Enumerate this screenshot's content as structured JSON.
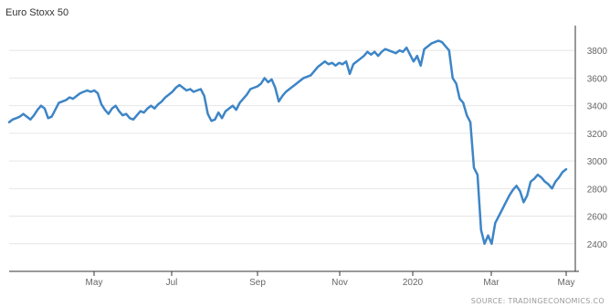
{
  "chart_data": {
    "type": "line",
    "title": "Euro Stoxx 50",
    "source": "SOURCE: TRADINGECONOMICS.CO",
    "xlabel": "",
    "ylabel": "",
    "ylim": [
      2200,
      3980
    ],
    "y_ticks": [
      2400,
      2600,
      2800,
      3000,
      3200,
      3400,
      3600,
      3800
    ],
    "x_ticks": [
      "May",
      "Jul",
      "Sep",
      "Nov",
      "2020",
      "Mar",
      "May"
    ],
    "grid": true,
    "colors": {
      "line": "#3d85c6",
      "grid": "#e6e6e6",
      "axis": "#333333"
    },
    "series": [
      {
        "values": [
          3280,
          3300,
          3310,
          3320,
          3340,
          3320,
          3300,
          3330,
          3370,
          3400,
          3380,
          3310,
          3320,
          3370,
          3420,
          3430,
          3440,
          3460,
          3450,
          3470,
          3490,
          3500,
          3510,
          3500,
          3510,
          3490,
          3410,
          3370,
          3340,
          3380,
          3400,
          3360,
          3330,
          3340,
          3310,
          3300,
          3330,
          3360,
          3350,
          3380,
          3400,
          3380,
          3410,
          3430,
          3460,
          3480,
          3500,
          3530,
          3550,
          3530,
          3510,
          3520,
          3500,
          3510,
          3520,
          3470,
          3340,
          3290,
          3300,
          3350,
          3310,
          3360,
          3380,
          3400,
          3370,
          3420,
          3450,
          3480,
          3520,
          3530,
          3540,
          3560,
          3600,
          3570,
          3590,
          3530,
          3430,
          3470,
          3500,
          3520,
          3540,
          3560,
          3580,
          3600,
          3610,
          3620,
          3650,
          3680,
          3700,
          3720,
          3700,
          3710,
          3690,
          3710,
          3700,
          3720,
          3630,
          3700,
          3720,
          3740,
          3760,
          3790,
          3770,
          3790,
          3760,
          3790,
          3810,
          3800,
          3790,
          3780,
          3800,
          3790,
          3820,
          3770,
          3720,
          3760,
          3690,
          3810,
          3830,
          3850,
          3860,
          3870,
          3860,
          3830,
          3800,
          3600,
          3560,
          3450,
          3420,
          3330,
          3280,
          2950,
          2900,
          2500,
          2400,
          2460,
          2400,
          2550,
          2600,
          2650,
          2700,
          2750,
          2790,
          2820,
          2780,
          2700,
          2750,
          2850,
          2870,
          2900,
          2880,
          2850,
          2830,
          2800,
          2850,
          2880,
          2920,
          2940
        ]
      }
    ]
  }
}
